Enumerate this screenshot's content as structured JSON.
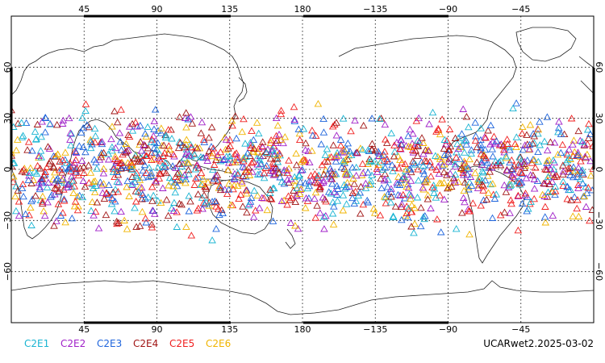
{
  "chart_data": {
    "type": "scatter",
    "projection": "cylindrical-equidistant",
    "central_longitude": 180,
    "lon_range": [
      0,
      360
    ],
    "lat_range": [
      -90,
      90
    ],
    "grid": true,
    "marker": "open-triangle",
    "x_top_ticks": [
      {
        "lon": 45,
        "label": "45"
      },
      {
        "lon": 90,
        "label": "90"
      },
      {
        "lon": 135,
        "label": "135"
      },
      {
        "lon": 180,
        "label": "180"
      },
      {
        "lon": 225,
        "label": "−135"
      },
      {
        "lon": 270,
        "label": "−90"
      },
      {
        "lon": 315,
        "label": "−45"
      }
    ],
    "x_bottom_ticks": [
      {
        "lon": 45,
        "label": "45"
      },
      {
        "lon": 90,
        "label": "90"
      },
      {
        "lon": 135,
        "label": "135"
      },
      {
        "lon": 180,
        "label": "180"
      },
      {
        "lon": 225,
        "label": "−135"
      },
      {
        "lon": 270,
        "label": "−90"
      },
      {
        "lon": 315,
        "label": "−45"
      }
    ],
    "y_ticks": [
      {
        "lat": 60,
        "label": "60"
      },
      {
        "lat": 30,
        "label": "30"
      },
      {
        "lat": 0,
        "label": "0"
      },
      {
        "lat": -30,
        "label": "−30"
      },
      {
        "lat": -60,
        "label": "−60"
      }
    ],
    "series": [
      {
        "name": "C2E1",
        "color": "#19b4d2"
      },
      {
        "name": "C2E2",
        "color": "#a020c8"
      },
      {
        "name": "C2E3",
        "color": "#1e64dc"
      },
      {
        "name": "C2E4",
        "color": "#a01414"
      },
      {
        "name": "C2E5",
        "color": "#f01e1e"
      },
      {
        "name": "C2E6",
        "color": "#f0b400"
      }
    ],
    "observation_lat_band": [
      -45,
      45
    ],
    "source_label": "UCARwet2.2025-03-02"
  }
}
